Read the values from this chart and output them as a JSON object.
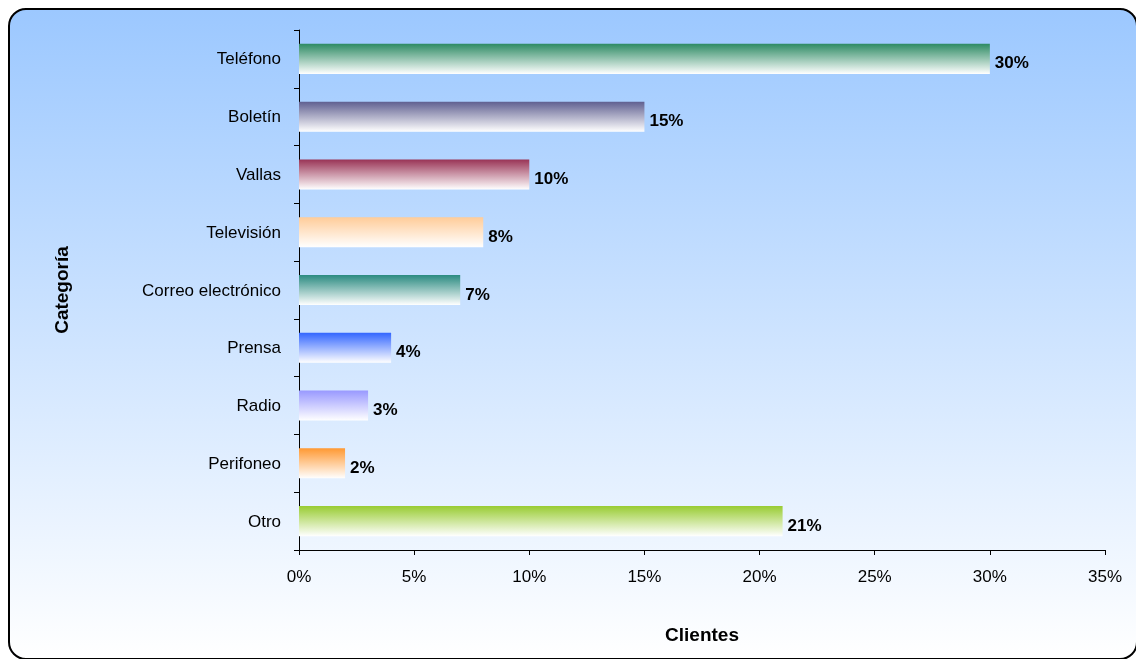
{
  "chart_data": {
    "type": "bar",
    "orientation": "horizontal",
    "xlabel": "Clientes",
    "ylabel": "Categoría",
    "categories": [
      "Teléfono",
      "Boletín",
      "Vallas",
      "Televisión",
      "Correo electrónico",
      "Prensa",
      "Radio",
      "Perifoneo",
      "Otro"
    ],
    "values": [
      30,
      15,
      10,
      8,
      7,
      4,
      3,
      2,
      21
    ],
    "value_labels": [
      "30%",
      "15%",
      "10%",
      "8%",
      "7%",
      "4%",
      "3%",
      "2%",
      "21%"
    ],
    "colors": [
      "#2e8b64",
      "#5f5f90",
      "#993355",
      "#ffcc99",
      "#2a8a80",
      "#3366ff",
      "#9999ff",
      "#ff9933",
      "#99cc33"
    ],
    "xlim": [
      0,
      35
    ],
    "xticks": [
      {
        "value": 0,
        "label": "0%"
      },
      {
        "value": 5,
        "label": "5%"
      },
      {
        "value": 10,
        "label": "10%"
      },
      {
        "value": 15,
        "label": "15%"
      },
      {
        "value": 20,
        "label": "20%"
      },
      {
        "value": 25,
        "label": "25%"
      },
      {
        "value": 30,
        "label": "30%"
      },
      {
        "value": 35,
        "label": "35%"
      }
    ],
    "grid": false
  }
}
